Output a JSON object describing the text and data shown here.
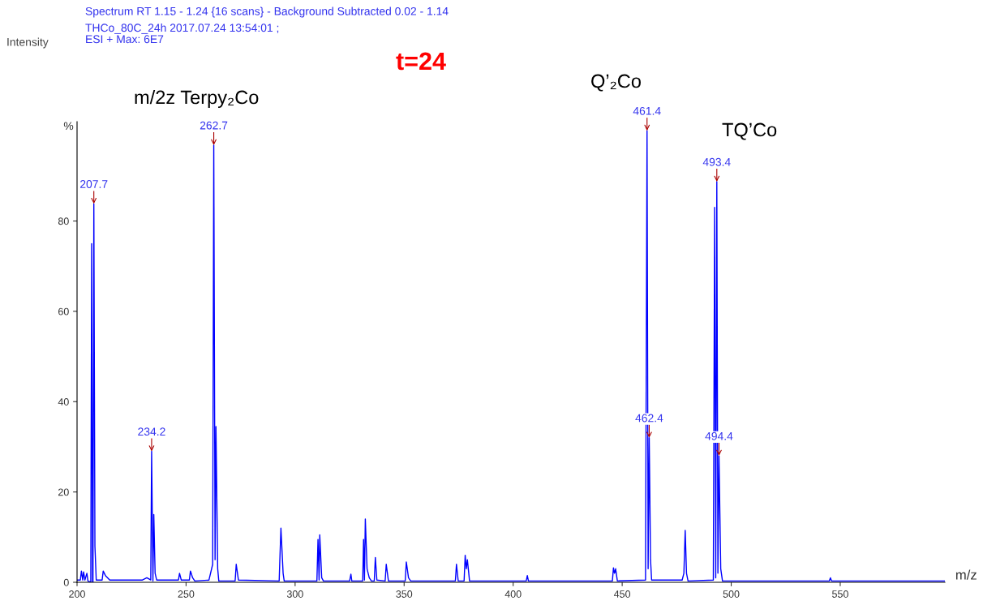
{
  "chart_data": {
    "type": "line",
    "title": "Spectrum RT 1.15 - 1.24 {16 scans} - Background Subtracted 0.02 - 1.14",
    "subtitle": "THCo_80C_24h 2017.07.24 13:54:01 ;\nESI + Max: 6E7",
    "xlabel": "m/z",
    "ylabel": "%",
    "xlim": [
      200,
      598
    ],
    "xticks": [
      200,
      250,
      300,
      350,
      400,
      450,
      500,
      550
    ],
    "ylim": [
      0,
      102
    ],
    "yticks": [
      0,
      20,
      40,
      60,
      80
    ],
    "grid": false,
    "marker": "none",
    "line_style": "solid",
    "series": [
      {
        "color": "#0000ff",
        "x": [
          200,
          201.5,
          202,
          202.6,
          203,
          203.6,
          204.5,
          205,
          206.3,
          206.7,
          207.1,
          207.3,
          207.7,
          208.2,
          208.8,
          211.5,
          212,
          213,
          214,
          215,
          225,
          230,
          232,
          233.8,
          234.2,
          234.8,
          235.2,
          235.8,
          236.5,
          240,
          246.5,
          247,
          247.8,
          251.5,
          252,
          253,
          254,
          260.5,
          262.2,
          262.7,
          263.3,
          263.7,
          264.5,
          265,
          272.5,
          273,
          274,
          292.7,
          293,
          293.5,
          294.5,
          295,
          310,
          310.5,
          311,
          311.3,
          312.2,
          313,
          325,
          325.6,
          326,
          331,
          331.4,
          331.8,
          332.2,
          333,
          334,
          335,
          336.3,
          336.8,
          337.5,
          341.3,
          341.8,
          342.8,
          350.5,
          351,
          352,
          353,
          373.5,
          374,
          374.8,
          377.5,
          378,
          378.5,
          379,
          380,
          406,
          406.5,
          407,
          445.5,
          446,
          446.5,
          447,
          447.8,
          460.7,
          461.4,
          461.9,
          462.4,
          463,
          463.5,
          477.5,
          478.3,
          478.9,
          479.5,
          480.2,
          491.8,
          492.4,
          492.9,
          493.4,
          493.9,
          494.4,
          495.2,
          496,
          545,
          545.5,
          546,
          598
        ],
        "values": [
          0.5,
          0.5,
          2.5,
          0.5,
          2.3,
          0.5,
          2,
          0.3,
          0,
          75,
          0,
          0,
          83.8,
          8,
          0.5,
          0.5,
          2.5,
          1.5,
          1,
          0.5,
          0.5,
          0.5,
          1,
          0.5,
          29,
          0.3,
          15,
          2,
          0.5,
          0.5,
          0.5,
          2,
          0.5,
          0.5,
          2.5,
          1,
          0.3,
          0.5,
          4,
          96.8,
          5,
          34.5,
          3,
          0.3,
          0.3,
          4,
          0.5,
          0.3,
          5,
          12,
          2,
          0.3,
          0.3,
          9.5,
          0.5,
          10.5,
          1,
          0.3,
          0.3,
          1.8,
          0.3,
          0.3,
          9.5,
          0.5,
          14,
          3,
          1,
          0.3,
          0.3,
          5.5,
          0.5,
          0.3,
          4,
          0.3,
          0.3,
          4.5,
          1,
          0.3,
          0.3,
          4,
          0.3,
          0.3,
          6,
          3,
          5,
          0.3,
          0.3,
          1.5,
          0.3,
          0.3,
          3.2,
          2,
          3,
          0.3,
          0.5,
          100,
          3,
          32,
          5,
          0.5,
          0.5,
          2,
          11.5,
          2,
          0.3,
          0.5,
          83,
          1,
          88.7,
          2,
          28,
          3,
          0.3,
          0.3,
          1,
          0.3,
          0.3
        ]
      }
    ],
    "annotations": [
      "Intensity",
      "t=24",
      "m/2z Terpy₂Co",
      "Q’₂Co",
      "TQ’Co",
      {
        "text": "207.7",
        "x": 207.7,
        "y": 83.8
      },
      {
        "text": "234.2",
        "x": 234.2,
        "y": 29
      },
      {
        "text": "262.7",
        "x": 262.7,
        "y": 96.8
      },
      {
        "text": "461.4",
        "x": 461.4,
        "y": 100
      },
      {
        "text": "462.4",
        "x": 462.4,
        "y": 32
      },
      {
        "text": "493.4",
        "x": 493.4,
        "y": 88.7
      },
      {
        "text": "494.4",
        "x": 494.4,
        "y": 28
      }
    ]
  }
}
